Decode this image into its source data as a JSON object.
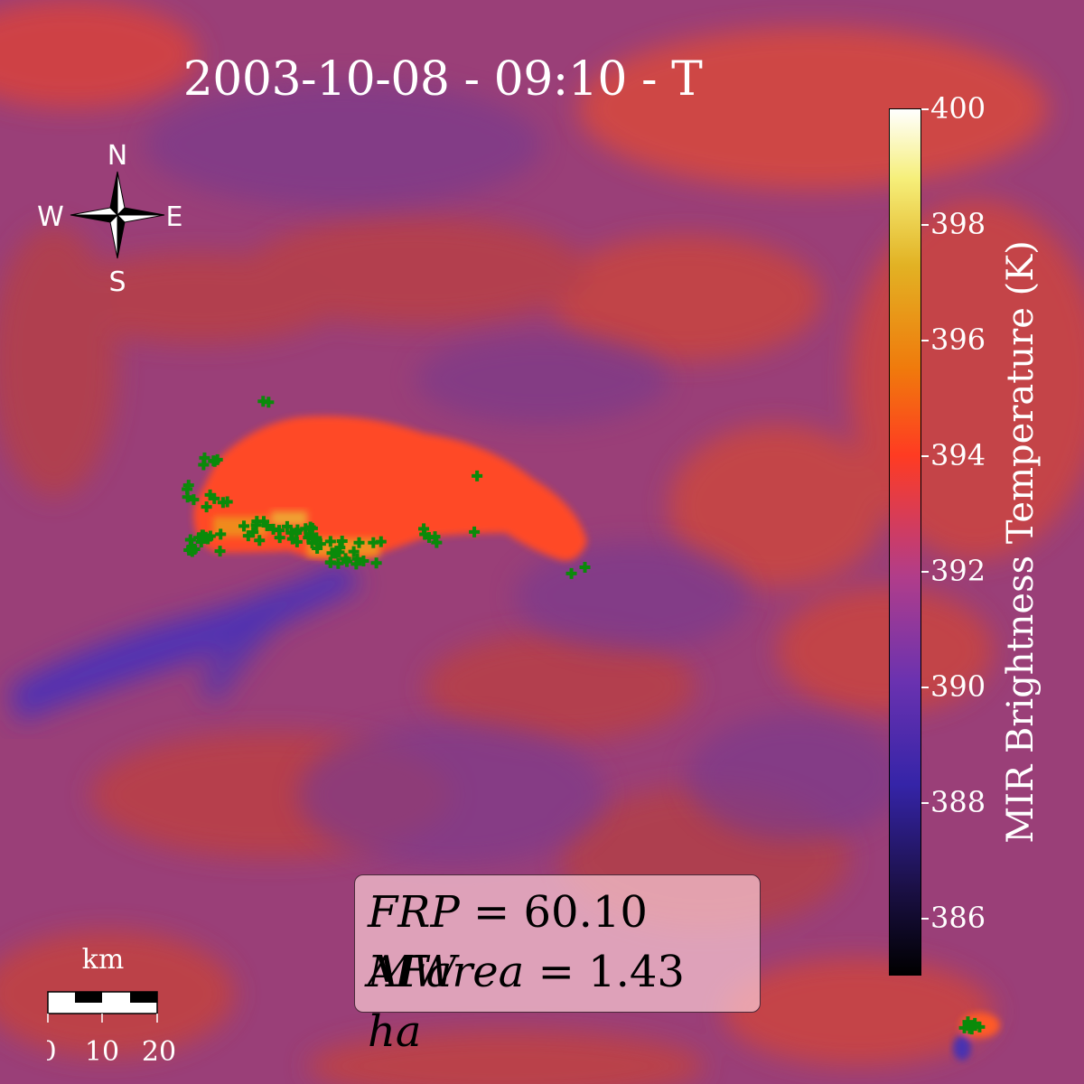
{
  "title": "2003-10-08 - 09:10 - T",
  "compass": {
    "north": "N",
    "south": "S",
    "east": "E",
    "west": "W",
    "icon": "compass-rose-icon"
  },
  "colorbar": {
    "title": "MIR Brightness Temperature (K)",
    "ticks": [
      "386",
      "388",
      "390",
      "392",
      "394",
      "396",
      "398",
      "400"
    ],
    "range": [
      385,
      400
    ]
  },
  "info": {
    "frp_label": "FRP",
    "frp_value": "60.10",
    "frp_unit": "MW",
    "area_label": "AFarea",
    "area_value": "1.43",
    "area_unit": "ha"
  },
  "scale": {
    "unit": "km",
    "ticks": [
      "0",
      "10",
      "20"
    ]
  },
  "colors": {
    "background": "#9a3f7a",
    "hot": "#ff4422",
    "plume": "#4a2ab0",
    "fire_marker": "#0a8a0a"
  }
}
